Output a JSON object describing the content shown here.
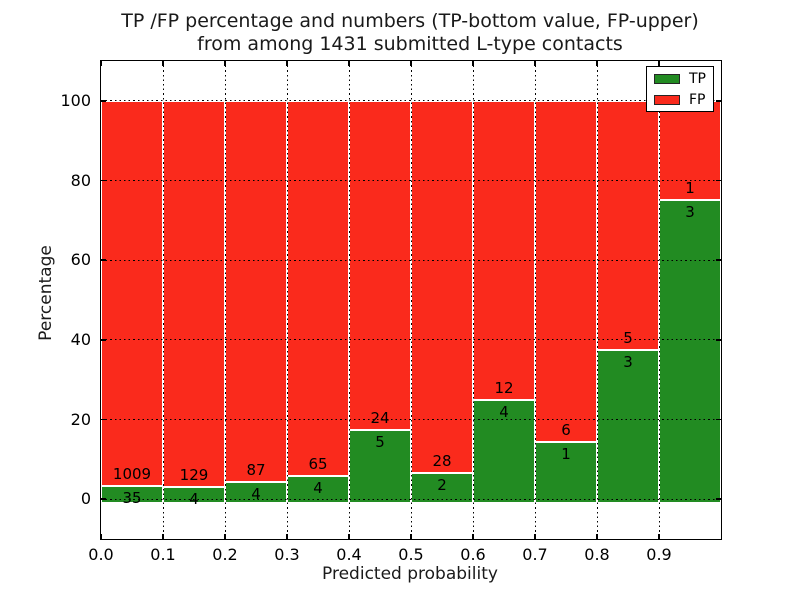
{
  "figure": {
    "title_line1": "TP /FP percentage and numbers (TP-bottom value, FP-upper)",
    "title_line2": "from among 1431 submitted L-type contacts"
  },
  "axes": {
    "xlabel": "Predicted probability",
    "ylabel": "Percentage",
    "yticks": [
      0,
      20,
      40,
      60,
      80,
      100
    ],
    "xticks": [
      "0.0",
      "0.1",
      "0.2",
      "0.3",
      "0.4",
      "0.5",
      "0.6",
      "0.7",
      "0.8",
      "0.9"
    ],
    "ylim": [
      -10,
      110
    ],
    "xlim": [
      0.0,
      1.0
    ],
    "grid": "dotted"
  },
  "legend": {
    "position": "upper right",
    "items": [
      {
        "label": "TP",
        "color": "#228b22"
      },
      {
        "label": "FP",
        "color": "#fa2a1c"
      }
    ]
  },
  "colors": {
    "tp_green": "#228b22",
    "fp_red": "#fa2a1c",
    "bar_edge": "#ffffff",
    "grid": "#000000",
    "background": "#ffffff"
  },
  "chart_data": {
    "type": "bar",
    "stacked": true,
    "normalized_to_percent": true,
    "title": "TP /FP percentage and numbers (TP-bottom value, FP-upper) from among 1431 submitted L-type contacts",
    "xlabel": "Predicted probability",
    "ylabel": "Percentage",
    "total_contacts": 1431,
    "bin_width": 0.1,
    "bin_starts": [
      0.0,
      0.1,
      0.2,
      0.3,
      0.4,
      0.5,
      0.6,
      0.7,
      0.8,
      0.9
    ],
    "categories": [
      "0.0-0.1",
      "0.1-0.2",
      "0.2-0.3",
      "0.3-0.4",
      "0.4-0.5",
      "0.5-0.6",
      "0.6-0.7",
      "0.7-0.8",
      "0.8-0.9",
      "0.9-1.0"
    ],
    "series": [
      {
        "name": "TP",
        "values": [
          35,
          4,
          4,
          4,
          5,
          2,
          4,
          1,
          3,
          3
        ]
      },
      {
        "name": "FP",
        "values": [
          1009,
          129,
          87,
          65,
          24,
          28,
          12,
          6,
          5,
          1
        ]
      }
    ],
    "tp_percent": [
      3.4,
      3.0,
      4.4,
      5.8,
      17.2,
      6.7,
      25.0,
      14.3,
      37.5,
      75.0
    ],
    "ylim": [
      -10,
      110
    ],
    "legend_position": "upper right"
  }
}
